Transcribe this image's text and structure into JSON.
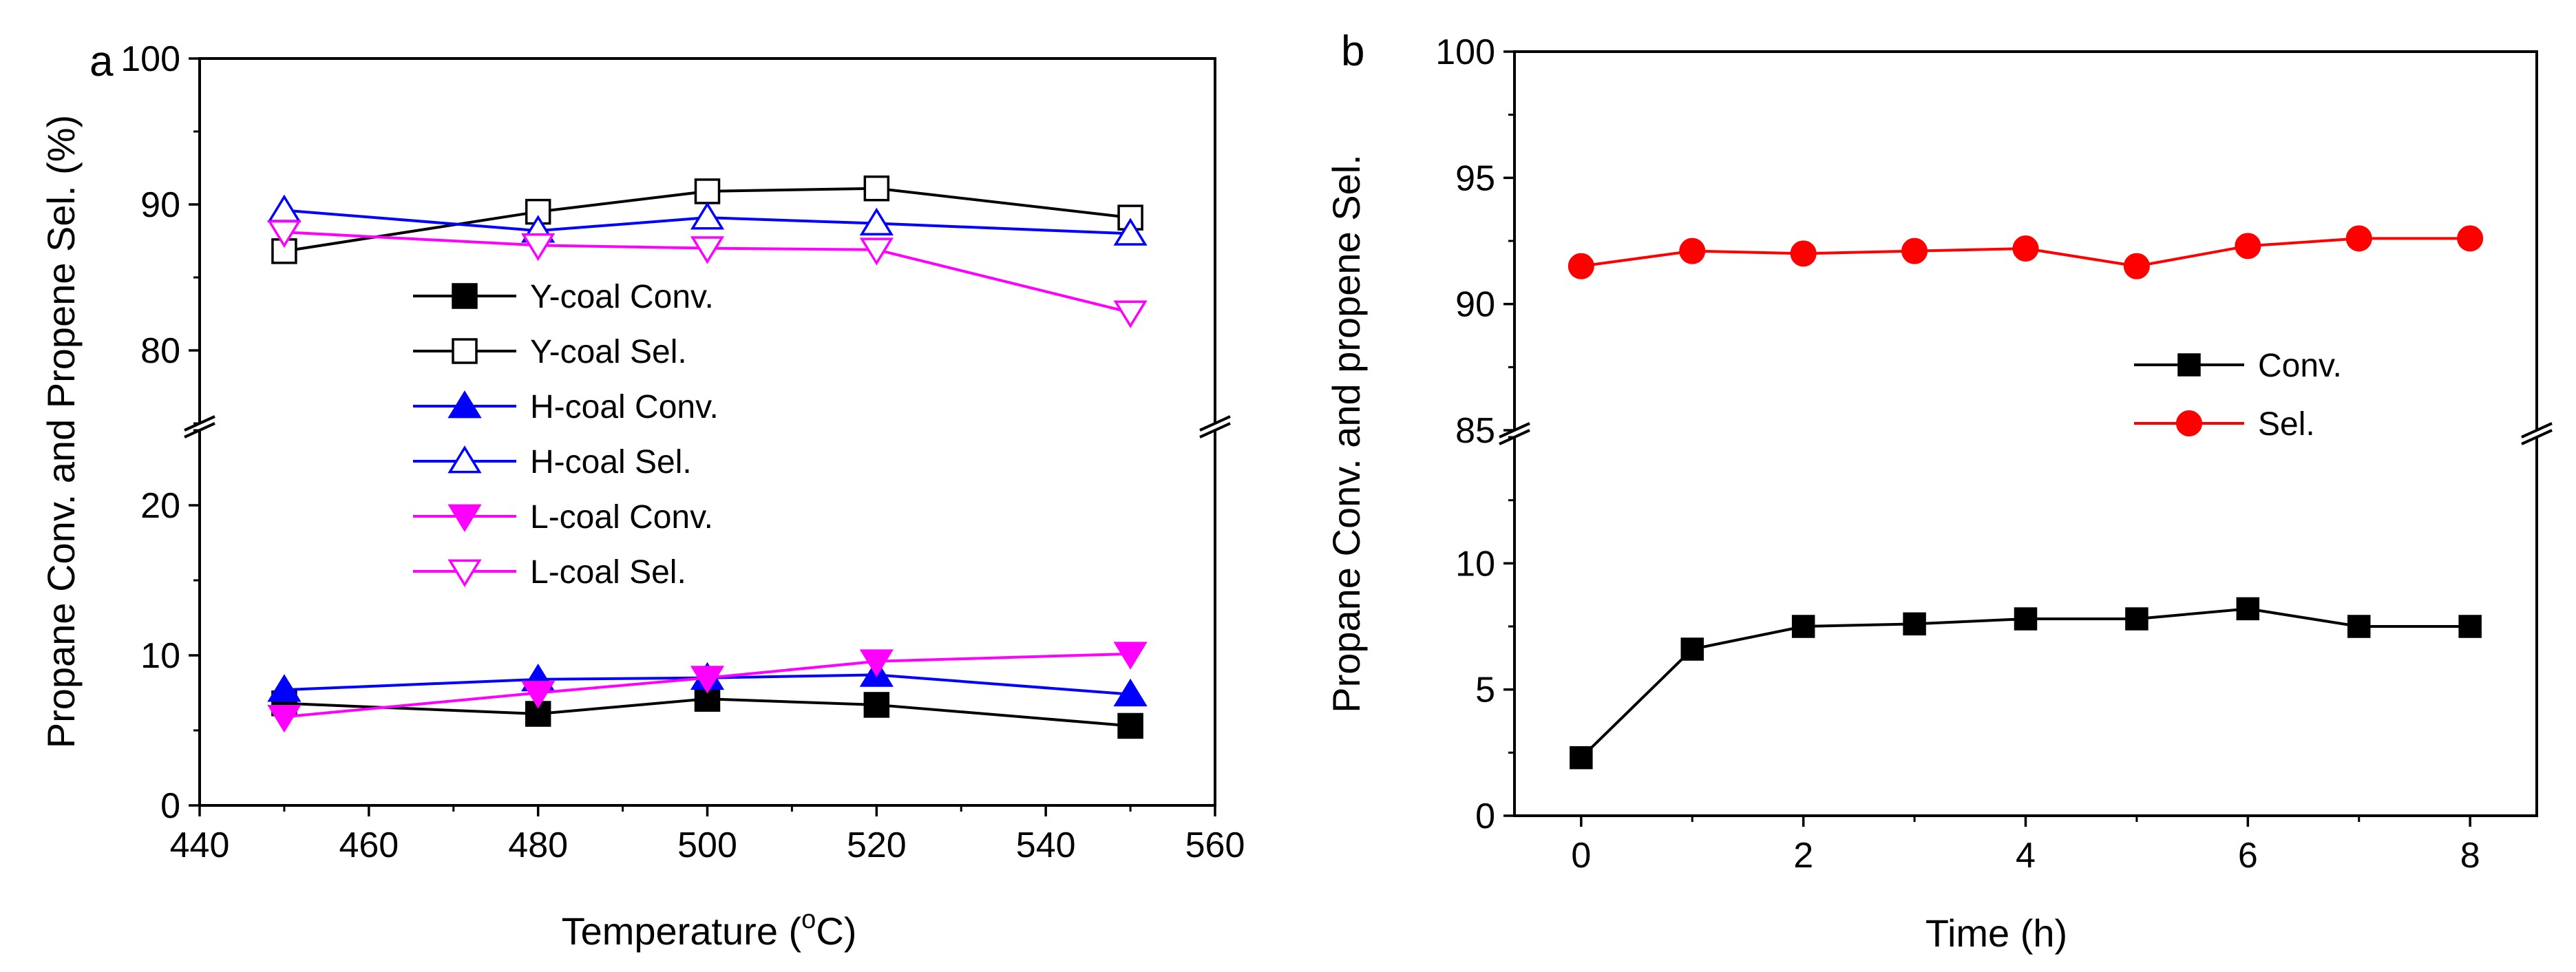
{
  "chart_data": [
    {
      "type": "line",
      "panel_label": "a",
      "xlabel_prefix": "Temperature (",
      "xlabel_deg": "o",
      "xlabel_suffix": "C)",
      "ylabel": "Propane Conv. and Propene Sel. (%)",
      "xlim": [
        440,
        560
      ],
      "xticks": [
        440,
        460,
        480,
        500,
        520,
        540,
        560
      ],
      "ylim_lower": [
        0,
        25
      ],
      "ylim_upper": [
        75,
        100
      ],
      "yticks_lower": [
        0,
        10,
        20
      ],
      "yticks_upper": [
        80,
        90,
        100
      ],
      "x": [
        450,
        480,
        500,
        520,
        550
      ],
      "series": [
        {
          "name": "Y-coal Conv.",
          "color": "#000000",
          "marker": "square",
          "filled": true,
          "values": [
            6.8,
            6.1,
            7.1,
            6.7,
            5.3
          ]
        },
        {
          "name": "Y-coal Sel.",
          "color": "#000000",
          "marker": "square",
          "filled": false,
          "values": [
            86.8,
            89.5,
            90.9,
            91.1,
            89.1
          ]
        },
        {
          "name": "H-coal Conv.",
          "color": "#0000ff",
          "marker": "triangle-up",
          "filled": true,
          "values": [
            7.7,
            8.4,
            8.5,
            8.7,
            7.4
          ]
        },
        {
          "name": "H-coal Sel.",
          "color": "#0000ff",
          "marker": "triangle-up",
          "filled": false,
          "values": [
            89.6,
            88.2,
            89.1,
            88.7,
            88.0
          ]
        },
        {
          "name": "L-coal Conv.",
          "color": "#ff00ff",
          "marker": "triangle-down",
          "filled": true,
          "values": [
            5.9,
            7.5,
            8.5,
            9.6,
            10.1
          ]
        },
        {
          "name": "L-coal Sel.",
          "color": "#ff00ff",
          "marker": "triangle-down",
          "filled": false,
          "values": [
            88.1,
            87.2,
            87.0,
            86.9,
            82.6
          ]
        }
      ]
    },
    {
      "type": "line",
      "panel_label": "b",
      "xlabel": "Time (h)",
      "ylabel": "Propane Conv. and propene Sel.",
      "xlim": [
        -0.6,
        8.6
      ],
      "xticks": [
        0,
        2,
        4,
        6,
        8
      ],
      "ylim_lower": [
        0,
        15
      ],
      "ylim_upper": [
        85,
        100
      ],
      "yticks_lower": [
        0,
        5,
        10
      ],
      "yticks_upper": [
        85,
        90,
        95,
        100
      ],
      "x": [
        0,
        1,
        2,
        3,
        4,
        5,
        6,
        7,
        8
      ],
      "series": [
        {
          "name": "Conv.",
          "color": "#000000",
          "marker": "square",
          "filled": true,
          "values": [
            2.3,
            6.6,
            7.5,
            7.6,
            7.8,
            7.8,
            8.2,
            7.5,
            7.5
          ]
        },
        {
          "name": "Sel.",
          "color": "#ff0000",
          "marker": "circle",
          "filled": true,
          "values": [
            91.5,
            92.1,
            92.0,
            92.1,
            92.2,
            91.5,
            92.3,
            92.6,
            92.6
          ]
        }
      ]
    }
  ]
}
